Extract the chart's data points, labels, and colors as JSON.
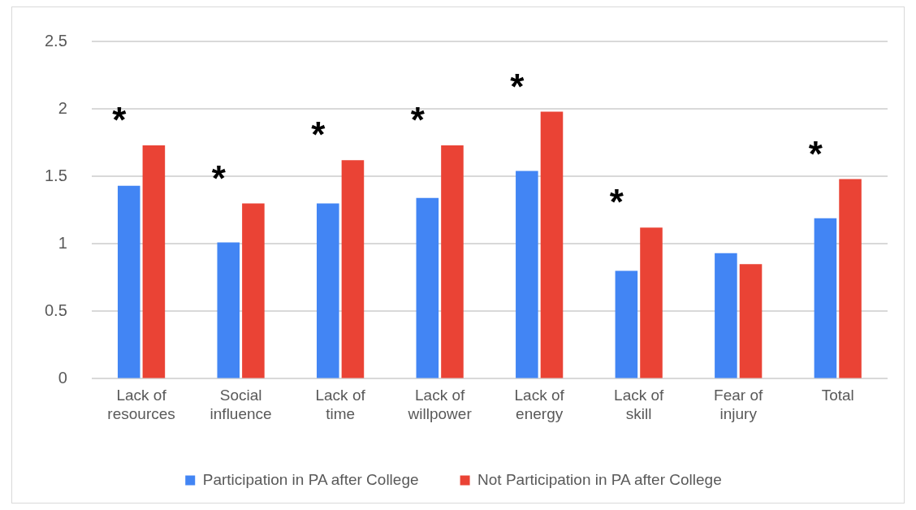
{
  "chart_data": {
    "type": "bar",
    "categories": [
      "Lack of resources",
      "Social influence",
      "Lack of time",
      "Lack of willpower",
      "Lack of energy",
      "Lack of skill",
      "Fear of injury",
      "Total"
    ],
    "series": [
      {
        "name": "Participation in PA after College",
        "color": "#4285f4",
        "values": [
          1.43,
          1.01,
          1.3,
          1.34,
          1.54,
          0.8,
          0.93,
          1.19
        ],
        "value_labels": [
          "*",
          "*",
          "*",
          "*",
          "*",
          "*",
          null,
          "*"
        ]
      },
      {
        "name": "Not Participation in PA after College",
        "color": "#ea4335",
        "values": [
          1.73,
          1.3,
          1.62,
          1.73,
          1.98,
          1.12,
          0.85,
          1.48
        ]
      }
    ],
    "ylim": [
      0,
      2.5
    ],
    "yticks": [
      0,
      0.5,
      1,
      1.5,
      2,
      2.5
    ],
    "grid": "y",
    "legend": "bottom"
  }
}
